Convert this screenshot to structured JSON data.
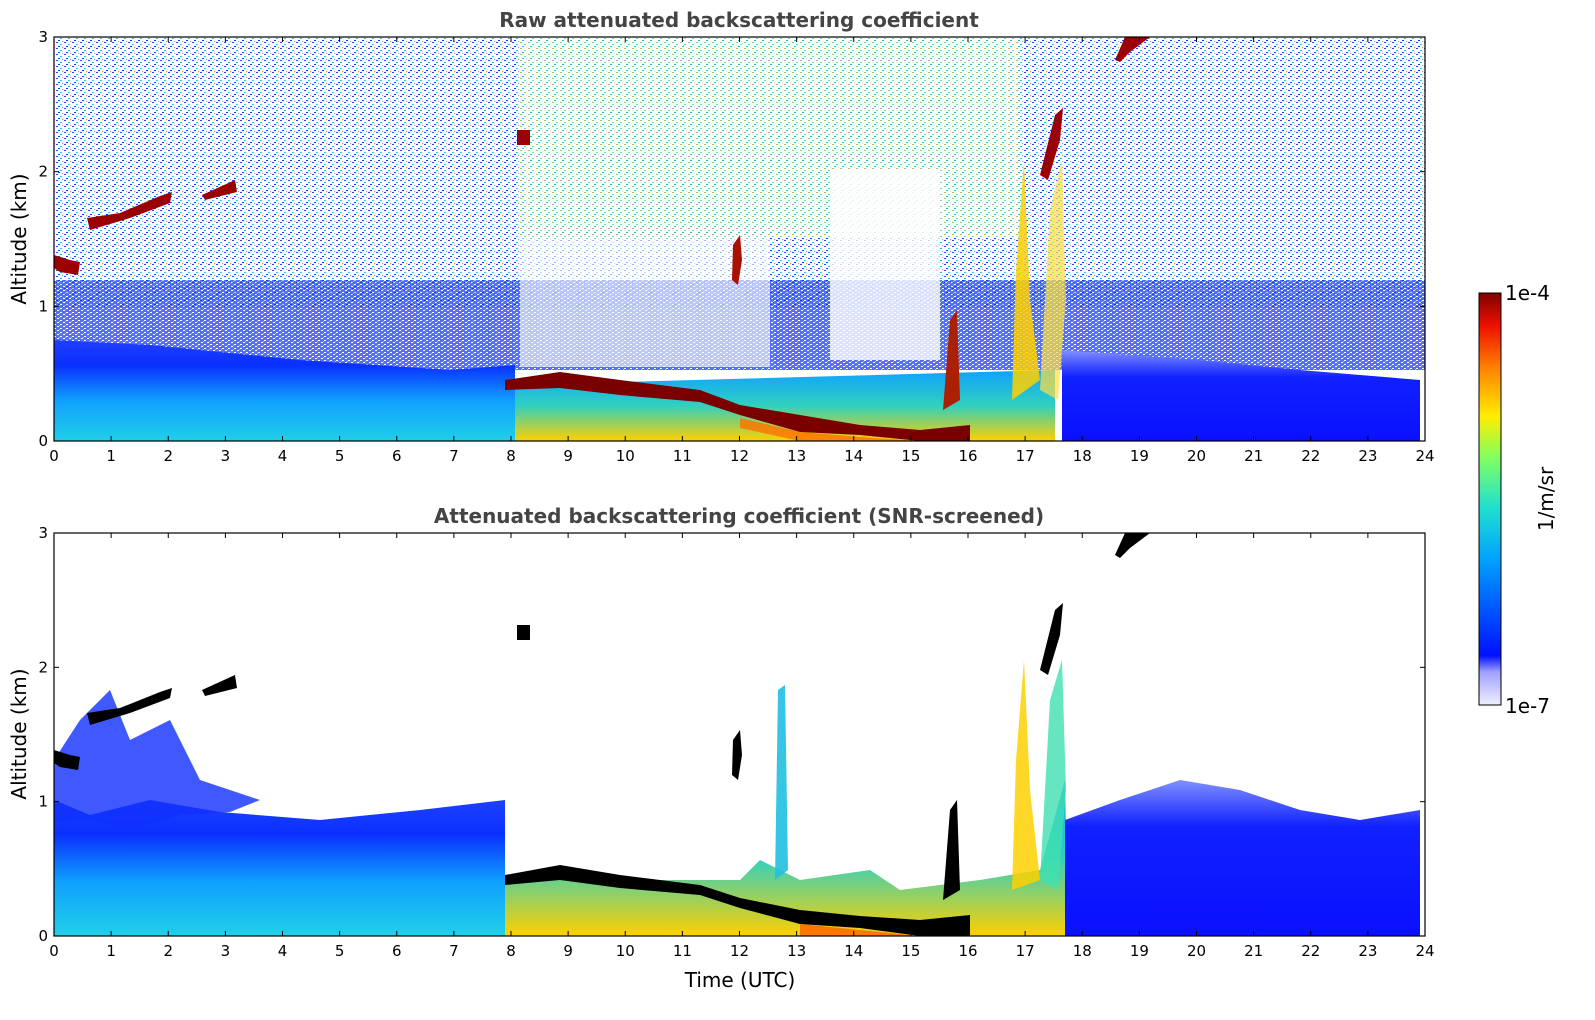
{
  "chart_data": [
    {
      "type": "heatmap",
      "title": "Raw attenuated backscattering coefficient",
      "xlabel": "",
      "ylabel": "Altitude (km)",
      "xlim": [
        0,
        24
      ],
      "ylim": [
        0,
        3
      ],
      "x_ticks": [
        "0",
        "1",
        "2",
        "3",
        "4",
        "5",
        "6",
        "7",
        "8",
        "9",
        "10",
        "11",
        "12",
        "13",
        "14",
        "15",
        "16",
        "17",
        "18",
        "19",
        "20",
        "21",
        "22",
        "23",
        "24"
      ],
      "y_ticks": [
        "0",
        "1",
        "2",
        "3"
      ],
      "layers": [
        {
          "feature": "boundary layer aerosol",
          "start_time": 0,
          "end_time": 24,
          "top_km": 0.6
        },
        {
          "feature": "noise region",
          "start_time": 0,
          "end_time": 24,
          "bottom_km": 0.7,
          "top_km": 3.0
        },
        {
          "feature": "cloud layer",
          "start_time": 0.0,
          "end_time": 0.4,
          "bottom_km": 1.25,
          "top_km": 1.4
        },
        {
          "feature": "cloud layer",
          "start_time": 0.6,
          "end_time": 2.0,
          "bottom_km": 1.6,
          "top_km": 1.8
        },
        {
          "feature": "cloud layer",
          "start_time": 2.6,
          "end_time": 3.2,
          "bottom_km": 1.8,
          "top_km": 1.9
        },
        {
          "feature": "cloud layer",
          "start_time": 8.1,
          "end_time": 8.3,
          "bottom_km": 2.2,
          "top_km": 2.3
        },
        {
          "feature": "low cloud",
          "start_time": 8.0,
          "end_time": 16.0,
          "bottom_km": 0.05,
          "top_km": 0.45
        },
        {
          "feature": "rising cloud",
          "start_time": 17.3,
          "end_time": 19.2,
          "bottom_km": 1.9,
          "top_km": 3.0
        }
      ]
    },
    {
      "type": "heatmap",
      "title": "Attenuated backscattering coefficient (SNR-screened)",
      "xlabel": "Time (UTC)",
      "ylabel": "Altitude (km)",
      "xlim": [
        0,
        24
      ],
      "ylim": [
        0,
        3
      ],
      "x_ticks": [
        "0",
        "1",
        "2",
        "3",
        "4",
        "5",
        "6",
        "7",
        "8",
        "9",
        "10",
        "11",
        "12",
        "13",
        "14",
        "15",
        "16",
        "17",
        "18",
        "19",
        "20",
        "21",
        "22",
        "23",
        "24"
      ],
      "y_ticks": [
        "0",
        "1",
        "2",
        "3"
      ],
      "layers": [
        {
          "feature": "boundary layer aerosol",
          "start_time": 0,
          "end_time": 8.0,
          "top_km": 0.8
        },
        {
          "feature": "boundary layer aerosol",
          "start_time": 17.8,
          "end_time": 24,
          "top_km": 0.9
        },
        {
          "feature": "cloud layer",
          "start_time": 0.0,
          "end_time": 0.4,
          "bottom_km": 1.25,
          "top_km": 1.4
        },
        {
          "feature": "cloud layer",
          "start_time": 0.6,
          "end_time": 2.0,
          "bottom_km": 1.6,
          "top_km": 1.8
        },
        {
          "feature": "low cloud",
          "start_time": 8.0,
          "end_time": 16.0,
          "bottom_km": 0.05,
          "top_km": 0.45
        },
        {
          "feature": "rising cloud",
          "start_time": 17.3,
          "end_time": 19.2,
          "bottom_km": 1.9,
          "top_km": 3.0
        }
      ]
    }
  ],
  "colorbar": {
    "label": "1/m/sr",
    "min_label": "1e-7",
    "max_label": "1e-4",
    "scale": "log",
    "colors": [
      "#f0f0ff",
      "#0010ff",
      "#00a0ff",
      "#20e0d0",
      "#80ff60",
      "#ffee00",
      "#ff8000",
      "#ee1000",
      "#800000"
    ]
  }
}
